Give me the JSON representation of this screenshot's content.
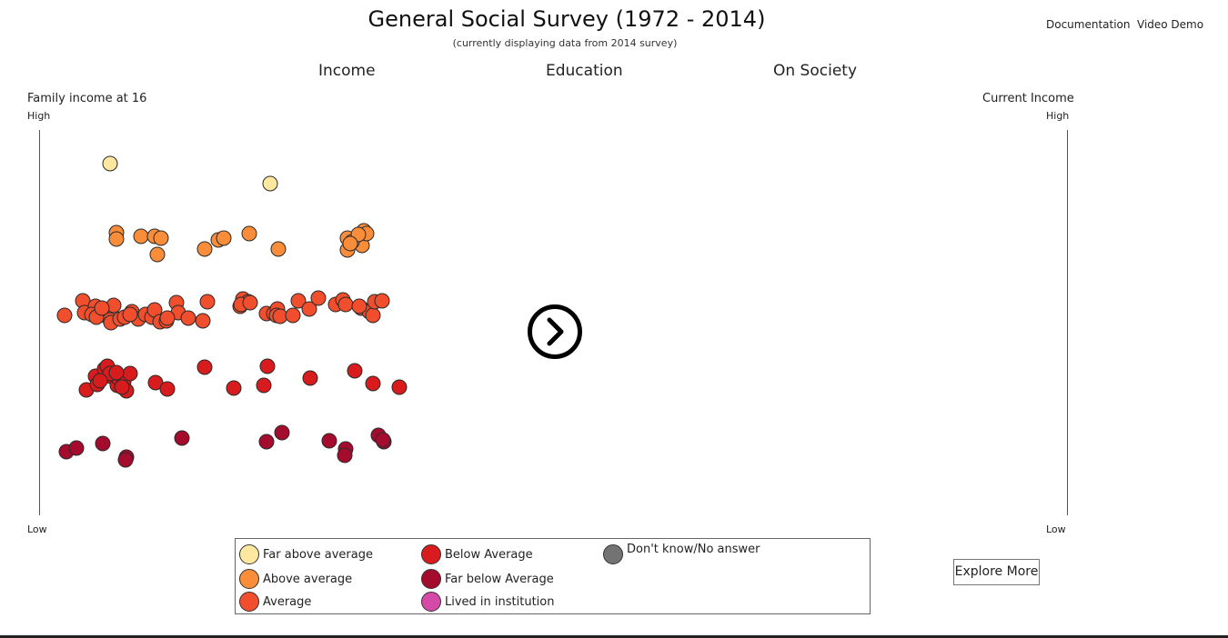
{
  "header": {
    "title": "General Social Survey (1972 - 2014)",
    "subtitle": "(currently displaying data from 2014 survey)",
    "links": [
      "Documentation",
      "Video Demo"
    ]
  },
  "tabs": [
    "Income",
    "Education",
    "On Society"
  ],
  "left_axis": {
    "title": "Family income at 16",
    "high": "High",
    "low": "Low"
  },
  "right_axis": {
    "title": "Current Income",
    "high": "High",
    "low": "Low"
  },
  "next_button_icon": "chevron-right-circle-icon",
  "legend": [
    {
      "label": "Far above average",
      "color": "#fee8a0"
    },
    {
      "label": "Above average",
      "color": "#f98d39"
    },
    {
      "label": "Average",
      "color": "#f04e2c"
    },
    {
      "label": "Below Average",
      "color": "#d81b1c"
    },
    {
      "label": "Far below Average",
      "color": "#a50b2c"
    },
    {
      "label": "Lived in institution",
      "color": "#d54aa8"
    },
    {
      "label": "Don't know/No answer",
      "color": "#737373"
    }
  ],
  "explore_button": "Explore More",
  "chart_data": {
    "type": "scatter",
    "y_axis": "Family income at 16",
    "y_levels": [
      "Far below Average",
      "Below Average",
      "Average",
      "Above average",
      "Far above average"
    ],
    "series": [
      {
        "name": "Far above average",
        "color": "#fee8a0",
        "count": 2
      },
      {
        "name": "Above average",
        "color": "#f98d39",
        "count": 20
      },
      {
        "name": "Average",
        "color": "#f04e2c",
        "count": 50
      },
      {
        "name": "Below Average",
        "color": "#d81b1c",
        "count": 25
      },
      {
        "name": "Far below Average",
        "color": "#a50b2c",
        "count": 14
      }
    ]
  }
}
